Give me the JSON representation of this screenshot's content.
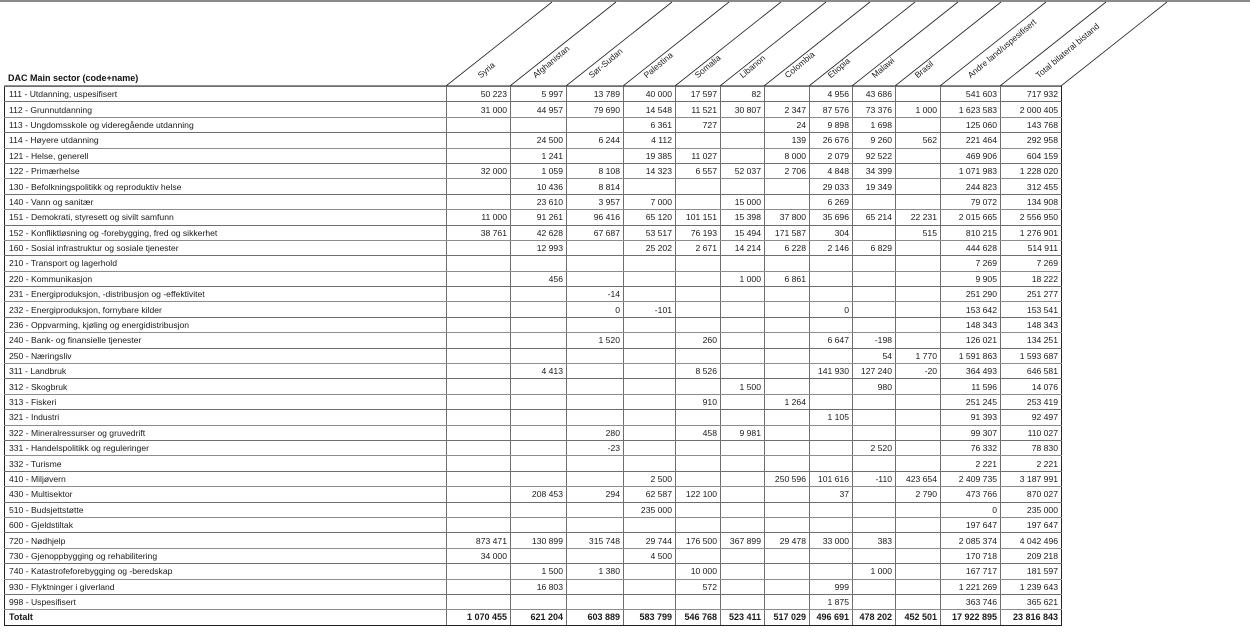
{
  "table": {
    "sector_header": "DAC Main sector (code+name)",
    "columns": [
      "Syria",
      "Afghanistan",
      "Sør-Sudan",
      "Palestina",
      "Somalia",
      "Libanon",
      "Colombia",
      "Etiopia",
      "Malawi",
      "Brasil",
      "Andre land/uspesifisert",
      "Total bilateral bistand"
    ],
    "rows": [
      {
        "sector": "111 -  Utdanning, uspesifisert",
        "values": [
          "50 223",
          "5 997",
          "13 789",
          "40 000",
          "17 597",
          "82",
          "",
          "4 956",
          "43 686",
          "",
          "541 603",
          "717 932"
        ]
      },
      {
        "sector": "112 - Grunnutdanning",
        "values": [
          "31 000",
          "44 957",
          "79 690",
          "14 548",
          "11 521",
          "30 807",
          "2 347",
          "87 576",
          "73 376",
          "1 000",
          "1 623 583",
          "2 000 405"
        ]
      },
      {
        "sector": "113 - Ungdomsskole og videregående utdanning",
        "values": [
          "",
          "",
          "",
          "6 361",
          "727",
          "",
          "24",
          "9 898",
          "1 698",
          "",
          "125 060",
          "143 768"
        ]
      },
      {
        "sector": "114 - Høyere utdanning",
        "values": [
          "",
          "24 500",
          "6 244",
          "4 112",
          "",
          "",
          "139",
          "26 676",
          "9 260",
          "562",
          "221 464",
          "292 958"
        ]
      },
      {
        "sector": "121 - Helse, generell",
        "values": [
          "",
          "1 241",
          "",
          "19 385",
          "11 027",
          "",
          "8 000",
          "2 079",
          "92 522",
          "",
          "469 906",
          "604 159"
        ]
      },
      {
        "sector": "122 - Primærhelse",
        "values": [
          "32 000",
          "1 059",
          "8 108",
          "14 323",
          "6 557",
          "52 037",
          "2 706",
          "4 848",
          "34 399",
          "",
          "1 071 983",
          "1 228 020"
        ]
      },
      {
        "sector": "130 - Befolkningspolitikk og reproduktiv helse",
        "values": [
          "",
          "10 436",
          "8 814",
          "",
          "",
          "",
          "",
          "29 033",
          "19 349",
          "",
          "244 823",
          "312 455"
        ]
      },
      {
        "sector": "140 - Vann og sanitær",
        "values": [
          "",
          "23 610",
          "3 957",
          "7 000",
          "",
          "15 000",
          "",
          "6 269",
          "",
          "",
          "79 072",
          "134 908"
        ]
      },
      {
        "sector": "151 - Demokrati, styresett og sivilt samfunn",
        "values": [
          "11 000",
          "91 261",
          "96 416",
          "65 120",
          "101 151",
          "15 398",
          "37 800",
          "35 696",
          "65 214",
          "22 231",
          "2 015 665",
          "2 556 950"
        ]
      },
      {
        "sector": "152 - Konfliktløsning og -forebygging, fred og sikkerhet",
        "values": [
          "38 761",
          "42 628",
          "67 687",
          "53 517",
          "76 193",
          "15 494",
          "171 587",
          "304",
          "",
          "515",
          "810 215",
          "1 276 901"
        ]
      },
      {
        "sector": "160 - Sosial infrastruktur og sosiale tjenester",
        "values": [
          "",
          "12 993",
          "",
          "25 202",
          "2 671",
          "14 214",
          "6 228",
          "2 146",
          "6 829",
          "",
          "444 628",
          "514 911"
        ]
      },
      {
        "sector": "210 - Transport og lagerhold",
        "values": [
          "",
          "",
          "",
          "",
          "",
          "",
          "",
          "",
          "",
          "",
          "7 269",
          "7 269"
        ]
      },
      {
        "sector": "220 - Kommunikasjon",
        "values": [
          "",
          "456",
          "",
          "",
          "",
          "1 000",
          "6 861",
          "",
          "",
          "",
          "9 905",
          "18 222"
        ]
      },
      {
        "sector": "231 - Energiproduksjon, -distribusjon og -effektivitet",
        "values": [
          "",
          "",
          "-14",
          "",
          "",
          "",
          "",
          "",
          "",
          "",
          "251 290",
          "251 277"
        ]
      },
      {
        "sector": "232 - Energiproduksjon, fornybare kilder",
        "values": [
          "",
          "",
          "0",
          "-101",
          "",
          "",
          "",
          "0",
          "",
          "",
          "153 642",
          "153 541"
        ]
      },
      {
        "sector": "236 - Oppvarming, kjøling og energidistribusjon",
        "values": [
          "",
          "",
          "",
          "",
          "",
          "",
          "",
          "",
          "",
          "",
          "148 343",
          "148 343"
        ]
      },
      {
        "sector": "240 - Bank- og finansielle tjenester",
        "values": [
          "",
          "",
          "1 520",
          "",
          "260",
          "",
          "",
          "6 647",
          "-198",
          "",
          "126 021",
          "134 251"
        ]
      },
      {
        "sector": "250 - Næringsliv",
        "values": [
          "",
          "",
          "",
          "",
          "",
          "",
          "",
          "",
          "54",
          "1 770",
          "1 591 863",
          "1 593 687"
        ]
      },
      {
        "sector": "311 - Landbruk",
        "values": [
          "",
          "4 413",
          "",
          "",
          "8 526",
          "",
          "",
          "141 930",
          "127 240",
          "-20",
          "364 493",
          "646 581"
        ]
      },
      {
        "sector": "312 - Skogbruk",
        "values": [
          "",
          "",
          "",
          "",
          "",
          "1 500",
          "",
          "",
          "980",
          "",
          "11 596",
          "14 076"
        ]
      },
      {
        "sector": "313 - Fiskeri",
        "values": [
          "",
          "",
          "",
          "",
          "910",
          "",
          "1 264",
          "",
          "",
          "",
          "251 245",
          "253 419"
        ]
      },
      {
        "sector": "321 - Industri",
        "values": [
          "",
          "",
          "",
          "",
          "",
          "",
          "",
          "1 105",
          "",
          "",
          "91 393",
          "92 497"
        ]
      },
      {
        "sector": "322 - Mineralressurser og gruvedrift",
        "values": [
          "",
          "",
          "280",
          "",
          "458",
          "9 981",
          "",
          "",
          "",
          "",
          "99 307",
          "110 027"
        ]
      },
      {
        "sector": "331 - Handelspolitikk og reguleringer",
        "values": [
          "",
          "",
          "-23",
          "",
          "",
          "",
          "",
          "",
          "2 520",
          "",
          "76 332",
          "78 830"
        ]
      },
      {
        "sector": "332 - Turisme",
        "values": [
          "",
          "",
          "",
          "",
          "",
          "",
          "",
          "",
          "",
          "",
          "2 221",
          "2 221"
        ]
      },
      {
        "sector": "410 - Miljøvern",
        "values": [
          "",
          "",
          "",
          "2 500",
          "",
          "",
          "250 596",
          "101 616",
          "-110",
          "423 654",
          "2 409 735",
          "3 187 991"
        ]
      },
      {
        "sector": "430 - Multisektor",
        "values": [
          "",
          "208 453",
          "294",
          "62 587",
          "122 100",
          "",
          "",
          "37",
          "",
          "2 790",
          "473 766",
          "870 027"
        ]
      },
      {
        "sector": "510 - Budsjettstøtte",
        "values": [
          "",
          "",
          "",
          "235 000",
          "",
          "",
          "",
          "",
          "",
          "",
          "0",
          "235 000"
        ]
      },
      {
        "sector": "600 - Gjeldstiltak",
        "values": [
          "",
          "",
          "",
          "",
          "",
          "",
          "",
          "",
          "",
          "",
          "197 647",
          "197 647"
        ]
      },
      {
        "sector": "720 - Nødhjelp",
        "values": [
          "873 471",
          "130 899",
          "315 748",
          "29 744",
          "176 500",
          "367 899",
          "29 478",
          "33 000",
          "383",
          "",
          "2 085 374",
          "4 042 496"
        ]
      },
      {
        "sector": "730 - Gjenoppbygging og rehabilitering",
        "values": [
          "34 000",
          "",
          "",
          "4 500",
          "",
          "",
          "",
          "",
          "",
          "",
          "170 718",
          "209 218"
        ]
      },
      {
        "sector": "740 - Katastrofeforebygging og -beredskap",
        "values": [
          "",
          "1 500",
          "1 380",
          "",
          "10 000",
          "",
          "",
          "",
          "1 000",
          "",
          "167 717",
          "181 597"
        ]
      },
      {
        "sector": "930 - Flyktninger i giverland",
        "values": [
          "",
          "16 803",
          "",
          "",
          "572",
          "",
          "",
          "999",
          "",
          "",
          "1 221 269",
          "1 239 643"
        ]
      },
      {
        "sector": "998 - Uspesifisert",
        "values": [
          "",
          "",
          "",
          "",
          "",
          "",
          "",
          "1 875",
          "",
          "",
          "363 746",
          "365 621"
        ]
      }
    ],
    "total": {
      "label": "Totalt",
      "values": [
        "1 070 455",
        "621 204",
        "603 889",
        "583 799",
        "546 768",
        "523 411",
        "517 029",
        "496 691",
        "478 202",
        "452 501",
        "17 922 895",
        "23 816 843"
      ]
    }
  }
}
